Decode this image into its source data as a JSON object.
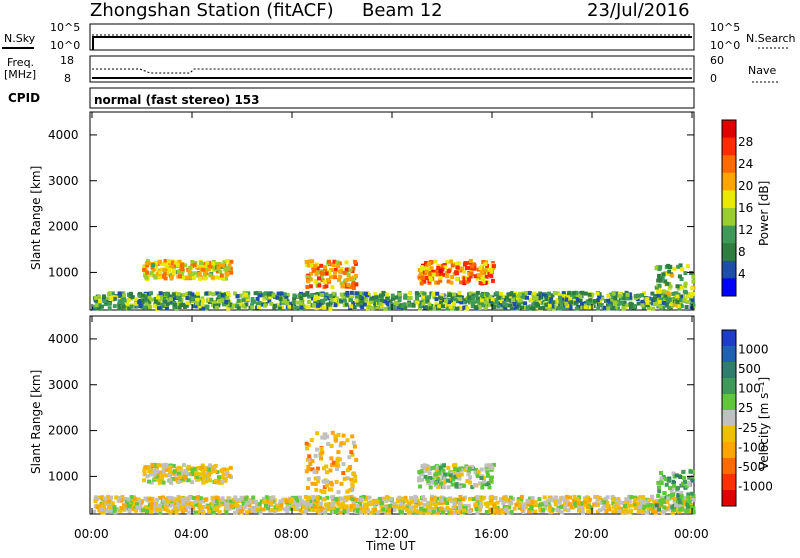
{
  "header": {
    "station": "Zhongshan Station (fitACF)",
    "beam": "Beam 12",
    "date": "23/Jul/2016"
  },
  "aux_panels": {
    "nsky_label": "N.Sky",
    "nsearch_label": "N.Search",
    "freq_label": "Freq.",
    "mhz_label": "[MHz]",
    "nave_label": "Nave",
    "cpid_label": "CPID",
    "cpid_text": "normal (fast stereo) 153",
    "nsky_ticks": [
      "10^5",
      "10^0"
    ],
    "nsearch_ticks": [
      "10^5",
      "10^0"
    ],
    "freq_ticks": [
      "18",
      "8"
    ],
    "nave_ticks": [
      "60",
      "0"
    ]
  },
  "x_axis": {
    "label": "Time UT",
    "ticks": [
      "00:00",
      "04:00",
      "08:00",
      "12:00",
      "16:00",
      "20:00",
      "00:00"
    ]
  },
  "power_panel": {
    "ylabel": "Slant Range [km]",
    "cbar_label": "Power [dB]",
    "cbar_ticks": [
      "28",
      "24",
      "20",
      "16",
      "12",
      "8",
      "4"
    ],
    "colors": [
      "#0000ff",
      "#1e4fa8",
      "#2f7d3f",
      "#3f9a5a",
      "#9acd32",
      "#e8e800",
      "#ffa500",
      "#ff6a00",
      "#ff2a00",
      "#e00000"
    ]
  },
  "velocity_panel": {
    "ylabel": "Slant Range [km]",
    "cbar_label": "Velocity [m s⁻¹]",
    "cbar_ticks": [
      "1000",
      "500",
      "100",
      "25",
      "-25",
      "-100",
      "-500",
      "-1000"
    ],
    "colors": [
      "#1e3cc8",
      "#2060b0",
      "#2f7d6a",
      "#3f9a5a",
      "#5fc83a",
      "#c0c0c0",
      "#f0c000",
      "#ffa500",
      "#ff6a00",
      "#ff3000",
      "#e00000"
    ]
  },
  "chart_data": [
    {
      "type": "heatmap",
      "title": "Zhongshan Station (fitACF) Beam 12 23/Jul/2016",
      "xlabel": "Time UT",
      "ylabel": "Slant Range [km]",
      "xlim": [
        "00:00",
        "24:00"
      ],
      "ylim": [
        180,
        4500
      ],
      "colorbar": "Power [dB]",
      "clim": [
        0,
        30
      ],
      "bands": [
        {
          "t0": 0.0,
          "t1": 24.0,
          "r0": 250,
          "r1": 600,
          "level": 10
        },
        {
          "t0": 2.0,
          "t1": 5.5,
          "r0": 900,
          "r1": 1300,
          "level": 18
        },
        {
          "t0": 8.5,
          "t1": 10.5,
          "r0": 700,
          "r1": 1300,
          "level": 20
        },
        {
          "t0": 13.0,
          "t1": 16.0,
          "r0": 800,
          "r1": 1300,
          "level": 22
        },
        {
          "t0": 22.5,
          "t1": 24.0,
          "r0": 300,
          "r1": 1200,
          "level": 12
        }
      ]
    },
    {
      "type": "heatmap",
      "title": "Zhongshan Station (fitACF) Beam 12 23/Jul/2016",
      "xlabel": "Time UT",
      "ylabel": "Slant Range [km]",
      "xlim": [
        "00:00",
        "24:00"
      ],
      "ylim": [
        180,
        4500
      ],
      "colorbar": "Velocity [m s⁻¹]",
      "clim": [
        -1000,
        1000
      ],
      "bands": [
        {
          "t0": 0.0,
          "t1": 24.0,
          "r0": 250,
          "r1": 600,
          "level": -100
        },
        {
          "t0": 2.0,
          "t1": 5.5,
          "r0": 900,
          "r1": 1300,
          "level": -100
        },
        {
          "t0": 8.5,
          "t1": 10.5,
          "r0": 700,
          "r1": 2000,
          "level": -300
        },
        {
          "t0": 13.0,
          "t1": 16.0,
          "r0": 800,
          "r1": 1300,
          "level": 100
        },
        {
          "t0": 22.5,
          "t1": 24.0,
          "r0": 300,
          "r1": 1200,
          "level": 300
        }
      ]
    }
  ]
}
